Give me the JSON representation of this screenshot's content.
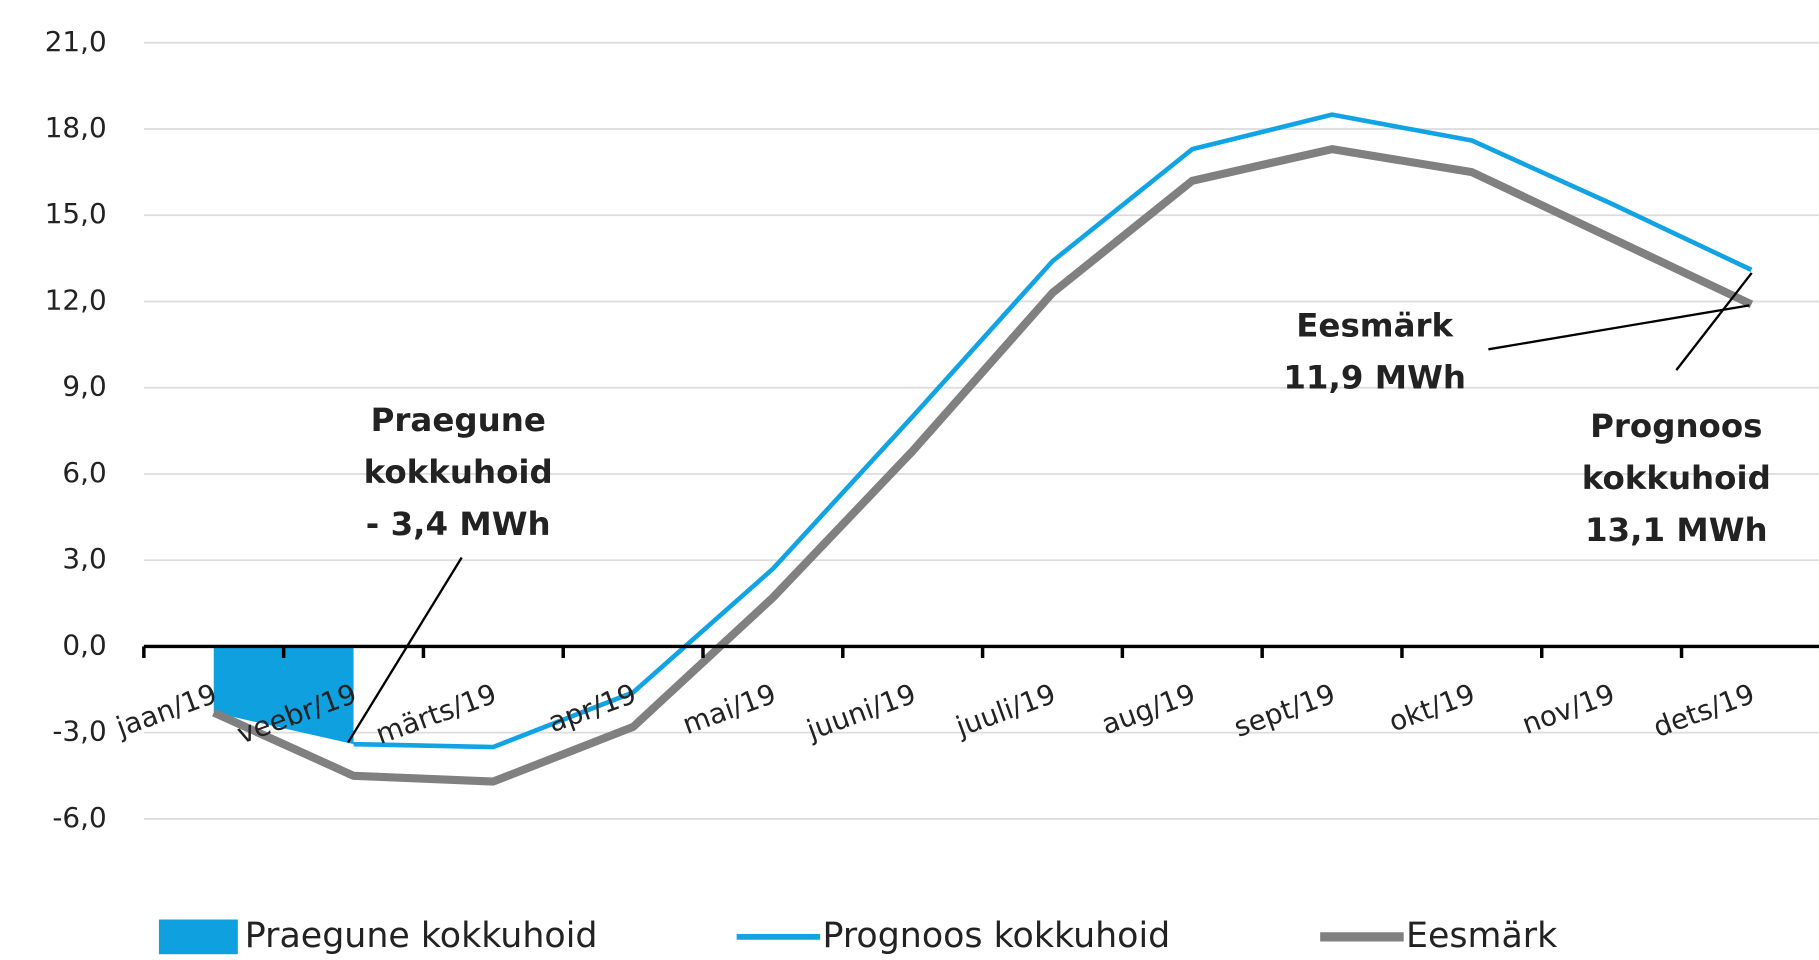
{
  "chart_data": {
    "type": "line",
    "categories": [
      "jaan/19",
      "veebr/19",
      "märts/19",
      "apr/19",
      "mai/19",
      "juuni/19",
      "juuli/19",
      "aug/19",
      "sept/19",
      "okt/19",
      "nov/19",
      "dets/19"
    ],
    "series": [
      {
        "name": "Praegune kokkuhoid",
        "type": "area",
        "color": "#0fa0e0",
        "values": [
          -2.3,
          -3.4,
          null,
          null,
          null,
          null,
          null,
          null,
          null,
          null,
          null,
          null
        ]
      },
      {
        "name": "Prognoos kokkuhoid",
        "type": "line",
        "color": "#12a3e3",
        "values": [
          null,
          -3.4,
          -3.5,
          -1.6,
          2.7,
          8.0,
          13.4,
          17.3,
          18.5,
          17.6,
          15.4,
          13.1
        ]
      },
      {
        "name": "Eesmärk",
        "type": "line",
        "color": "#808080",
        "values": [
          -2.3,
          -4.5,
          -4.7,
          -2.8,
          1.7,
          6.8,
          12.3,
          16.2,
          17.3,
          16.5,
          14.2,
          11.9
        ]
      }
    ],
    "ylim": [
      -6,
      21
    ],
    "yticks": [
      {
        "value": -6,
        "label": "-6,0"
      },
      {
        "value": -3,
        "label": "-3,0"
      },
      {
        "value": 0,
        "label": "0,0"
      },
      {
        "value": 3,
        "label": "3,0"
      },
      {
        "value": 6,
        "label": "6,0"
      },
      {
        "value": 9,
        "label": "9,0"
      },
      {
        "value": 12,
        "label": "12,0"
      },
      {
        "value": 15,
        "label": "15,0"
      },
      {
        "value": 18,
        "label": "18,0"
      },
      {
        "value": 21,
        "label": "21,0"
      }
    ],
    "grid": true,
    "legend": "bottom",
    "annotations": [
      [
        "Praegune",
        "kokkuhoid",
        "- 3,4 MWh"
      ],
      [
        "Eesmärk",
        "11,9 MWh"
      ],
      [
        "Prognoos",
        "kokkuhoid",
        "13,1 MWh"
      ]
    ]
  }
}
